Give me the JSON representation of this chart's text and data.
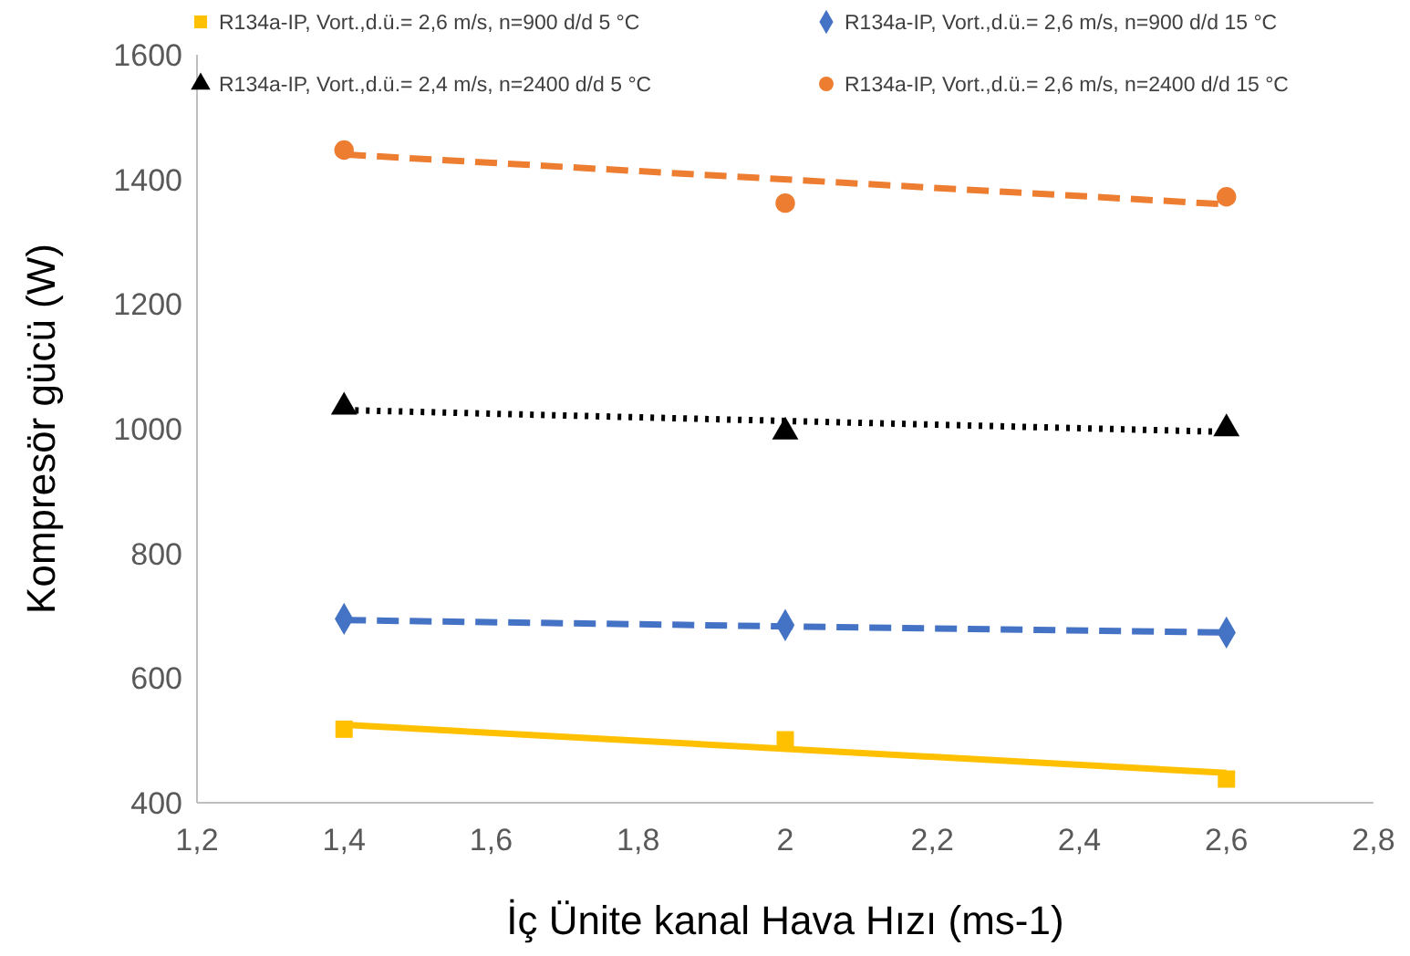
{
  "chart_data": {
    "type": "scatter",
    "xlabel": "İç Ünite kanal Hava Hızı (ms-1)",
    "ylabel": "Kompresör gücü (W)",
    "xlim": [
      1.2,
      2.8
    ],
    "xticks": [
      {
        "value": 1.2,
        "label": "1,2"
      },
      {
        "value": 1.4,
        "label": "1,4"
      },
      {
        "value": 1.6,
        "label": "1,6"
      },
      {
        "value": 1.8,
        "label": "1,8"
      },
      {
        "value": 2,
        "label": "2"
      },
      {
        "value": 2.2,
        "label": "2,2"
      },
      {
        "value": 2.4,
        "label": "2,4"
      },
      {
        "value": 2.6,
        "label": "2,6"
      },
      {
        "value": 2.8,
        "label": "2,8"
      }
    ],
    "ylim": [
      400,
      1600
    ],
    "yticks": [
      400,
      600,
      800,
      1000,
      1200,
      1400,
      1600
    ],
    "grid": false,
    "legend": "top",
    "series": [
      {
        "name": "R134a-IP, Vort.,d.ü.= 2,6 m/s, n=900 d/d 5 °C",
        "color": "#ffc000",
        "marker": "square",
        "x": [
          1.4,
          2,
          2.6
        ],
        "values": [
          518,
          501,
          438
        ]
      },
      {
        "name": "R134a-IP, Vort.,d.ü.= 2,6 m/s, n=900 d/d 15 °C",
        "color": "#4472c4",
        "marker": "diamond",
        "x": [
          1.4,
          2,
          2.6
        ],
        "values": [
          695,
          685,
          673
        ]
      },
      {
        "name": "R134a-IP, Vort.,d.ü.= 2,4 m/s, n=2400 d/d 5 °C",
        "color": "#000000",
        "marker": "triangle",
        "x": [
          1.4,
          2,
          2.6
        ],
        "values": [
          1035,
          995,
          1000
        ]
      },
      {
        "name": "R134a-IP, Vort.,d.ü.= 2,6 m/s, n=2400 d/d 15 °C",
        "color": "#ed7d31",
        "marker": "circle",
        "x": [
          1.4,
          2,
          2.6
        ],
        "values": [
          1447,
          1362,
          1372
        ]
      },
      {
        "type": "line",
        "color": "#ffc000",
        "line_style": "solid",
        "x": [
          1.4,
          2.6
        ],
        "values": [
          525,
          448
        ]
      },
      {
        "type": "line",
        "color": "#4472c4",
        "line_style": "dashed",
        "x": [
          1.4,
          2.6
        ],
        "values": [
          693,
          673
        ]
      },
      {
        "type": "line",
        "color": "#000000",
        "line_style": "dotted",
        "x": [
          1.4,
          2.6
        ],
        "values": [
          1030,
          995
        ]
      },
      {
        "type": "line",
        "color": "#ed7d31",
        "line_style": "dashed",
        "x": [
          1.4,
          2.6
        ],
        "values": [
          1440,
          1360
        ]
      }
    ]
  }
}
